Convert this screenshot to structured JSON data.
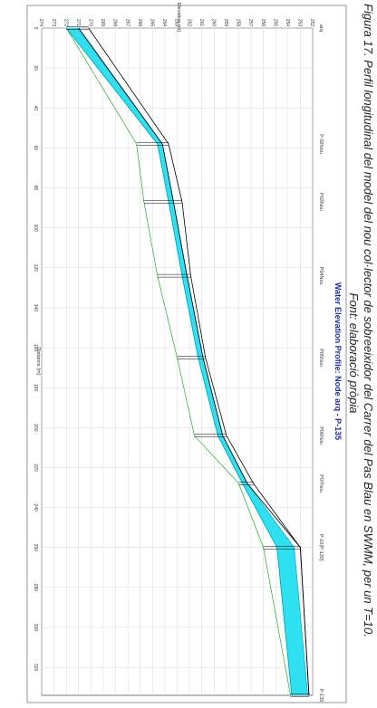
{
  "caption": {
    "line1": "Figura 17. Perfil longitudinal del model del nou col·lector de sobreeixidor del Carrer del Pas Blau en SWMM, per un T=10.",
    "line2": "Font: elaboració pròpia"
  },
  "chart_data": {
    "type": "line",
    "title": "Water Elevation Profile: Node arq - P-135",
    "xlabel": "Distance (m)",
    "ylabel": "Elevation (m)",
    "xlim": [
      0,
      334
    ],
    "ylim": [
      252,
      274
    ],
    "x_ticks": [
      "0",
      "20",
      "40",
      "60",
      "80",
      "100",
      "120",
      "140",
      "160",
      "180",
      "200",
      "220",
      "240",
      "260",
      "280",
      "300",
      "320"
    ],
    "y_ticks": [
      "252",
      "253",
      "254",
      "255",
      "256",
      "257",
      "258",
      "259",
      "260",
      "261",
      "262",
      "263",
      "264",
      "265",
      "266",
      "267",
      "268",
      "269",
      "270",
      "271",
      "272",
      "273",
      "274"
    ],
    "grid": true,
    "nodes": [
      {
        "label": "arq",
        "x": 0
      },
      {
        "label": "P-02Nou",
        "x": 58
      },
      {
        "label": "P03Nou",
        "x": 87
      },
      {
        "label": "P04Nou",
        "x": 124
      },
      {
        "label": "P05Nou",
        "x": 165
      },
      {
        "label": "P06Nou",
        "x": 204
      },
      {
        "label": "P07Nou",
        "x": 228
      },
      {
        "label": "P-10(P-130)",
        "x": 260
      },
      {
        "label": "P-135",
        "x": 334
      }
    ],
    "series": [
      {
        "values": [
          [
            0,
            272.0
          ],
          [
            58,
            264.6
          ],
          [
            87,
            263.7
          ],
          [
            124,
            262.6
          ],
          [
            165,
            261.3
          ],
          [
            204,
            259.7
          ],
          [
            228,
            257.7
          ],
          [
            260,
            254.9
          ],
          [
            334,
            253.7
          ]
        ],
        "color": "#009bb0"
      },
      {
        "values": [
          [
            0,
            271.1
          ],
          [
            58,
            264.2
          ],
          [
            87,
            263.3
          ],
          [
            124,
            262.2
          ],
          [
            165,
            260.9
          ],
          [
            204,
            259.3
          ],
          [
            228,
            257.3
          ],
          [
            260,
            253.5
          ],
          [
            334,
            252.4
          ]
        ],
        "color": "#00b7d6"
      },
      {
        "values": [
          [
            0,
            271.0
          ],
          [
            58,
            264.2
          ],
          [
            87,
            263.3
          ],
          [
            124,
            262.2
          ],
          [
            165,
            260.9
          ],
          [
            204,
            259.3
          ],
          [
            228,
            257.3
          ],
          [
            260,
            253.0
          ],
          [
            334,
            252.3
          ]
        ],
        "color": "#000000"
      },
      {
        "values": [
          [
            0,
            270.2
          ],
          [
            58,
            263.7
          ],
          [
            87,
            262.6
          ],
          [
            124,
            261.9
          ],
          [
            165,
            260.7
          ],
          [
            204,
            259.0
          ],
          [
            228,
            256.8
          ],
          [
            260,
            253.0
          ],
          [
            334,
            252.3
          ]
        ],
        "color": "#000000"
      },
      {
        "values": [
          [
            0,
            272.0
          ],
          [
            58,
            266.3
          ],
          [
            87,
            265.7
          ],
          [
            124,
            264.6
          ],
          [
            165,
            263.0
          ],
          [
            204,
            261.6
          ],
          [
            228,
            258.0
          ],
          [
            260,
            256.0
          ],
          [
            334,
            253.8
          ]
        ],
        "color": "#00a000"
      }
    ]
  }
}
